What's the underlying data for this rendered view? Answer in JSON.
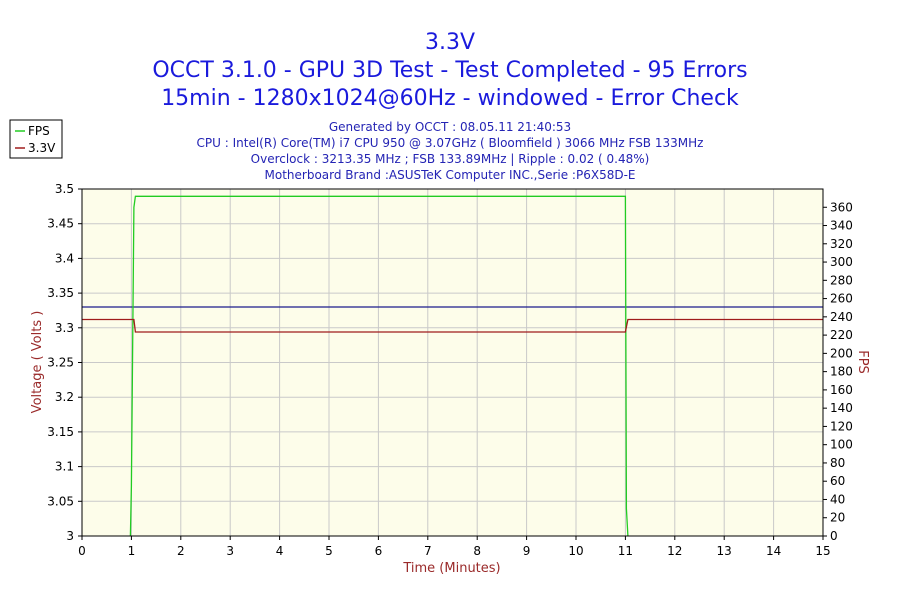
{
  "chart_data": {
    "type": "line",
    "title": "3.3V",
    "subtitle_lines": [
      "OCCT 3.1.0 - GPU 3D Test - Test Completed - 95 Errors",
      "15min - 1280x1024@60Hz - windowed - Error Check"
    ],
    "info_lines": [
      "Generated by OCCT : 08.05.11 21:40:53",
      "CPU : Intel(R) Core(TM) i7 CPU 950 @ 3.07GHz ( Bloomfield ) 3066 MHz FSB 133MHz",
      "Overclock : 3213.35 MHz ; FSB 133.89MHz | Ripple : 0.02 ( 0.48%)",
      "Motherboard Brand :ASUSTeK Computer INC.,Serie :P6X58D-E"
    ],
    "xlabel": "Time (Minutes)",
    "ylabel": "Voltage ( Volts )",
    "y2label": "FPS",
    "xlim": [
      0,
      15
    ],
    "ylim": [
      3.0,
      3.5
    ],
    "y2lim": [
      0,
      380
    ],
    "x_ticks": [
      "0",
      "1",
      "2",
      "3",
      "4",
      "5",
      "6",
      "7",
      "8",
      "9",
      "10",
      "11",
      "12",
      "13",
      "14",
      "15"
    ],
    "y_ticks": [
      "3",
      "3.05",
      "3.1",
      "3.15",
      "3.2",
      "3.25",
      "3.3",
      "3.35",
      "3.4",
      "3.45",
      "3.5"
    ],
    "y2_ticks": [
      "0",
      "20",
      "40",
      "60",
      "80",
      "100",
      "120",
      "140",
      "160",
      "180",
      "200",
      "220",
      "240",
      "260",
      "280",
      "300",
      "320",
      "340",
      "360"
    ],
    "grid": true,
    "legend_position": "top-left outside",
    "legend": [
      {
        "name": "FPS",
        "color": "#22cc22"
      },
      {
        "name": "3.3V",
        "color": "#a01c1c"
      }
    ],
    "reference_line": {
      "y": 3.33,
      "color": "#1c1c8c"
    },
    "series": [
      {
        "name": "FPS",
        "axis": "y2",
        "color": "#22cc22",
        "x": [
          0.98,
          1.0,
          1.05,
          1.08,
          2.0,
          4.0,
          6.0,
          8.0,
          10.0,
          11.0,
          11.02,
          11.05
        ],
        "y": [
          0,
          55,
          360,
          372,
          372,
          372,
          372,
          372,
          372,
          372,
          30,
          0
        ]
      },
      {
        "name": "3.3V",
        "axis": "y",
        "color": "#a01c1c",
        "x": [
          0,
          1.05,
          1.08,
          11.0,
          11.05,
          15
        ],
        "y": [
          3.312,
          3.312,
          3.294,
          3.294,
          3.312,
          3.312
        ]
      }
    ]
  },
  "colors": {
    "plot_background": "#fdfdea",
    "grid": "#c9c9c9",
    "title": "#1a1adc",
    "info": "#2424b4"
  }
}
